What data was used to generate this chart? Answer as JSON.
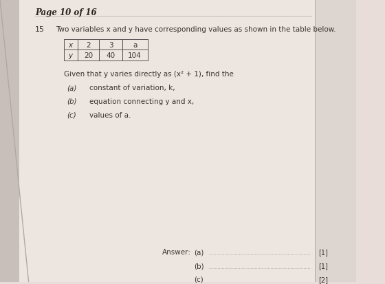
{
  "page_header": "Page 10 of 16",
  "question_number": "15",
  "question_text": "Two variables x and y have corresponding values as shown in the table below.",
  "table_headers": [
    "x",
    "2",
    "3",
    "a"
  ],
  "table_values": [
    "y",
    "20",
    "40",
    "104"
  ],
  "given_text": "Given that y varies directly as (x² + 1), find the",
  "parts": [
    {
      "label": "(a)",
      "text": "constant of variation, k,"
    },
    {
      "label": "(b)",
      "text": "equation connecting y and x,"
    },
    {
      "label": "(c)",
      "text": "values of a."
    }
  ],
  "answer_label": "Answer:",
  "answer_parts": [
    {
      "label": "(a)",
      "marks": "[1]"
    },
    {
      "label": "(b)",
      "marks": "[1]"
    },
    {
      "label": "(c)",
      "marks": "[2]"
    }
  ],
  "bg_color": "#e8ddd8",
  "paper_color": "#ede5e0",
  "right_panel_color": "#ddd5d0",
  "left_edge_color": "#c8bfba",
  "text_color": "#3a3330",
  "table_border_color": "#555050",
  "answer_line_color": "#888080",
  "header_color": "#2a2520"
}
